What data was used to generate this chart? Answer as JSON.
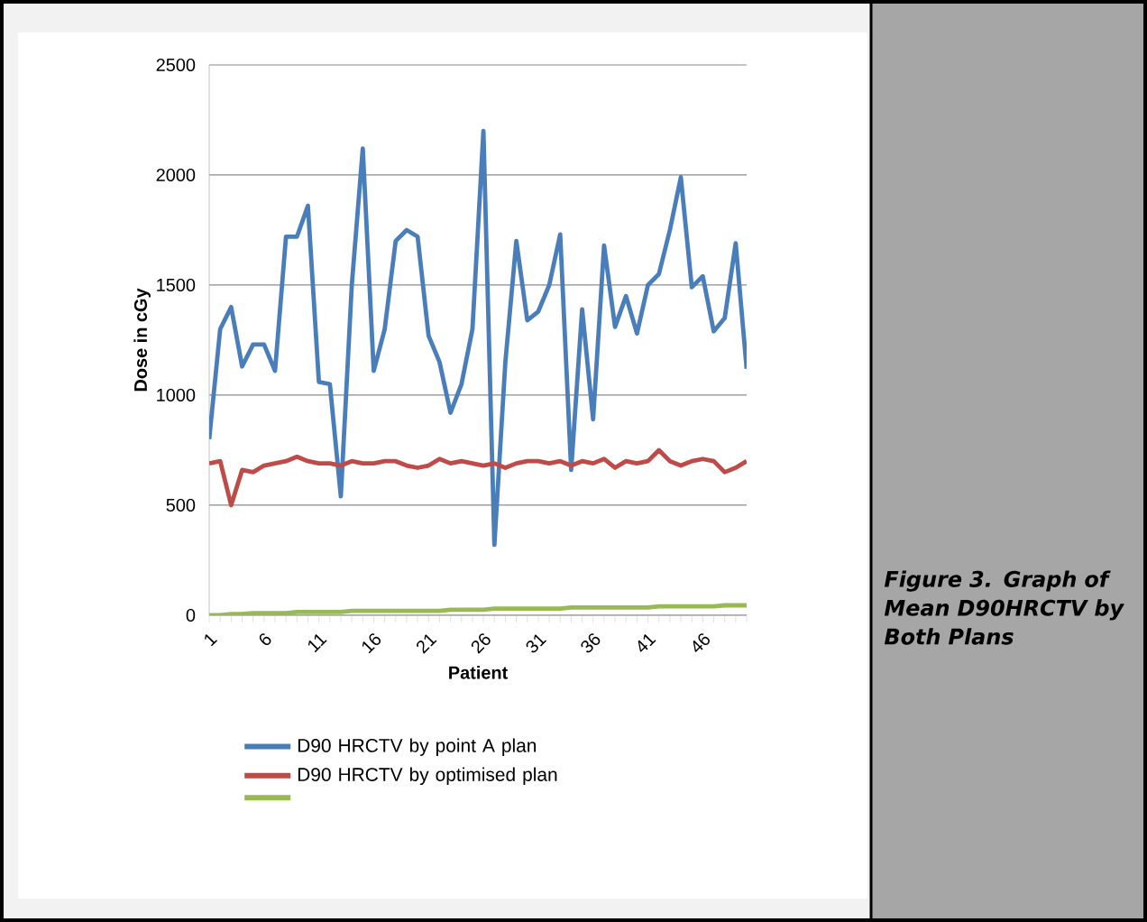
{
  "chart_data": {
    "type": "line",
    "xlabel": "Patient",
    "ylabel": "Dose in  cGy",
    "categories": [
      "1",
      null,
      null,
      null,
      null,
      "6",
      null,
      null,
      null,
      null,
      "11",
      null,
      null,
      null,
      null,
      "16",
      null,
      null,
      null,
      null,
      "21",
      null,
      null,
      null,
      null,
      "26",
      null,
      null,
      null,
      null,
      "31",
      null,
      null,
      null,
      null,
      "36",
      null,
      null,
      null,
      null,
      "41",
      null,
      null,
      null,
      null,
      "46",
      null,
      null,
      null,
      null
    ],
    "series": [
      {
        "name": "D90 HRCTV by point A plan",
        "color": "#4a7ebb",
        "values": [
          800,
          1300,
          1400,
          1130,
          1230,
          1230,
          1110,
          1720,
          1720,
          1860,
          1060,
          1050,
          540,
          1500,
          2120,
          1110,
          1300,
          1700,
          1750,
          1720,
          1270,
          1150,
          920,
          1050,
          1300,
          2200,
          320,
          1150,
          1700,
          1340,
          1380,
          1500,
          1730,
          660,
          1390,
          890,
          1680,
          1310,
          1450,
          1280,
          1500,
          1550,
          1750,
          1990,
          1490,
          1540,
          1290,
          1350,
          1690,
          1120
        ]
      },
      {
        "name": "D90 HRCTV by optimised plan",
        "color": "#be4b48",
        "values": [
          690,
          700,
          500,
          660,
          650,
          680,
          690,
          700,
          720,
          700,
          690,
          690,
          680,
          700,
          690,
          690,
          700,
          700,
          680,
          670,
          680,
          710,
          690,
          700,
          690,
          680,
          690,
          670,
          690,
          700,
          700,
          690,
          700,
          680,
          700,
          690,
          710,
          670,
          700,
          690,
          700,
          750,
          700,
          680,
          700,
          710,
          700,
          650,
          670,
          700
        ]
      },
      {
        "color": "#98b954",
        "values": [
          0,
          0,
          5,
          5,
          10,
          10,
          10,
          10,
          15,
          15,
          15,
          15,
          15,
          20,
          20,
          20,
          20,
          20,
          20,
          20,
          20,
          20,
          25,
          25,
          25,
          25,
          30,
          30,
          30,
          30,
          30,
          30,
          30,
          35,
          35,
          35,
          35,
          35,
          35,
          35,
          35,
          40,
          40,
          40,
          40,
          40,
          40,
          45,
          45,
          45
        ]
      }
    ],
    "ylim": [
      0,
      2500
    ],
    "yticks": [
      0,
      500,
      1000,
      1500,
      2000,
      2500
    ],
    "grid": "y",
    "legend": "bottom",
    "marker": "none",
    "line_style": "solid",
    "annotations": [
      "Figure 3. Graph of Mean D90HRCTV by Both Plans"
    ]
  }
}
